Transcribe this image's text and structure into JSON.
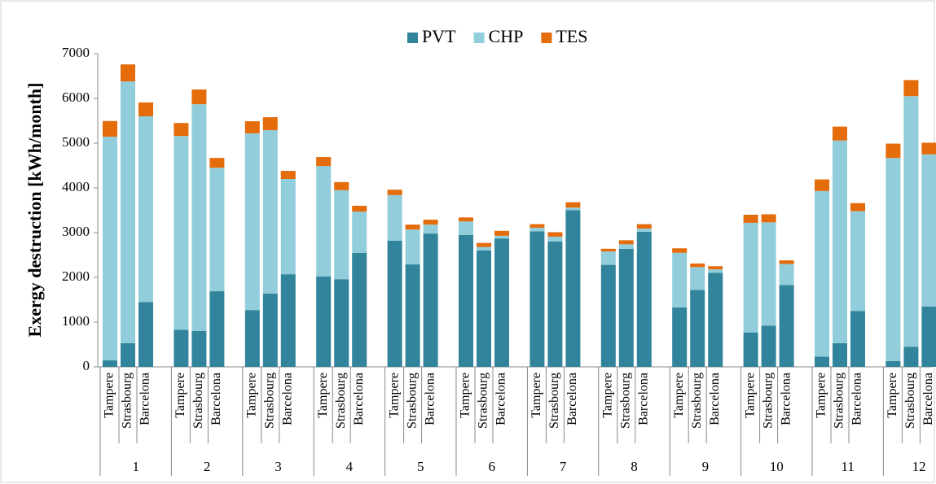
{
  "chart_data": {
    "type": "bar",
    "stacked": true,
    "y_label": "Exergy destruction [kWh/month]",
    "groups": [
      "1",
      "2",
      "3",
      "4",
      "5",
      "6",
      "7",
      "8",
      "9",
      "10",
      "11",
      "12"
    ],
    "categories": [
      "Tampere",
      "Strasbourg",
      "Barcelona",
      "Tampere",
      "Strasbourg",
      "Barcelona",
      "Tampere",
      "Strasbourg",
      "Barcelona",
      "Tampere",
      "Strasbourg",
      "Barcelona",
      "Tampere",
      "Strasbourg",
      "Barcelona",
      "Tampere",
      "Strasbourg",
      "Barcelona",
      "Tampere",
      "Strasbourg",
      "Barcelona",
      "Tampere",
      "Strasbourg",
      "Barcelona",
      "Tampere",
      "Strasbourg",
      "Barcelona",
      "Tampere",
      "Strasbourg",
      "Barcelona",
      "Tampere",
      "Strasbourg",
      "Barcelona",
      "Tampere",
      "Strasbourg",
      "Barcelona"
    ],
    "series": [
      {
        "name": "PVT",
        "color": "#31849b",
        "values": [
          145,
          530,
          1450,
          830,
          800,
          1690,
          1270,
          1640,
          2070,
          2020,
          1960,
          2550,
          2820,
          2290,
          2980,
          2950,
          2600,
          2870,
          3030,
          2800,
          3500,
          2280,
          2640,
          3020,
          1330,
          1720,
          2100,
          770,
          920,
          1830,
          230,
          530,
          1250,
          130,
          450,
          1350
        ]
      },
      {
        "name": "CHP",
        "color": "#92cddc",
        "values": [
          5000,
          5850,
          4150,
          4330,
          5070,
          2760,
          3950,
          3650,
          2130,
          2470,
          1990,
          920,
          1020,
          780,
          200,
          300,
          80,
          60,
          80,
          110,
          60,
          300,
          100,
          70,
          1220,
          510,
          80,
          2450,
          2310,
          470,
          3700,
          4530,
          2230,
          4540,
          5600,
          3400
        ]
      },
      {
        "name": "TES",
        "color": "#e46c0a",
        "values": [
          350,
          380,
          310,
          290,
          330,
          220,
          270,
          290,
          180,
          200,
          180,
          130,
          120,
          110,
          110,
          90,
          90,
          110,
          80,
          100,
          120,
          60,
          90,
          100,
          100,
          80,
          70,
          180,
          180,
          80,
          260,
          310,
          180,
          320,
          360,
          260
        ]
      }
    ],
    "ylim": [
      0,
      7000
    ],
    "yticks": [
      0,
      1000,
      2000,
      3000,
      4000,
      5000,
      6000,
      7000
    ],
    "legend": "top"
  }
}
